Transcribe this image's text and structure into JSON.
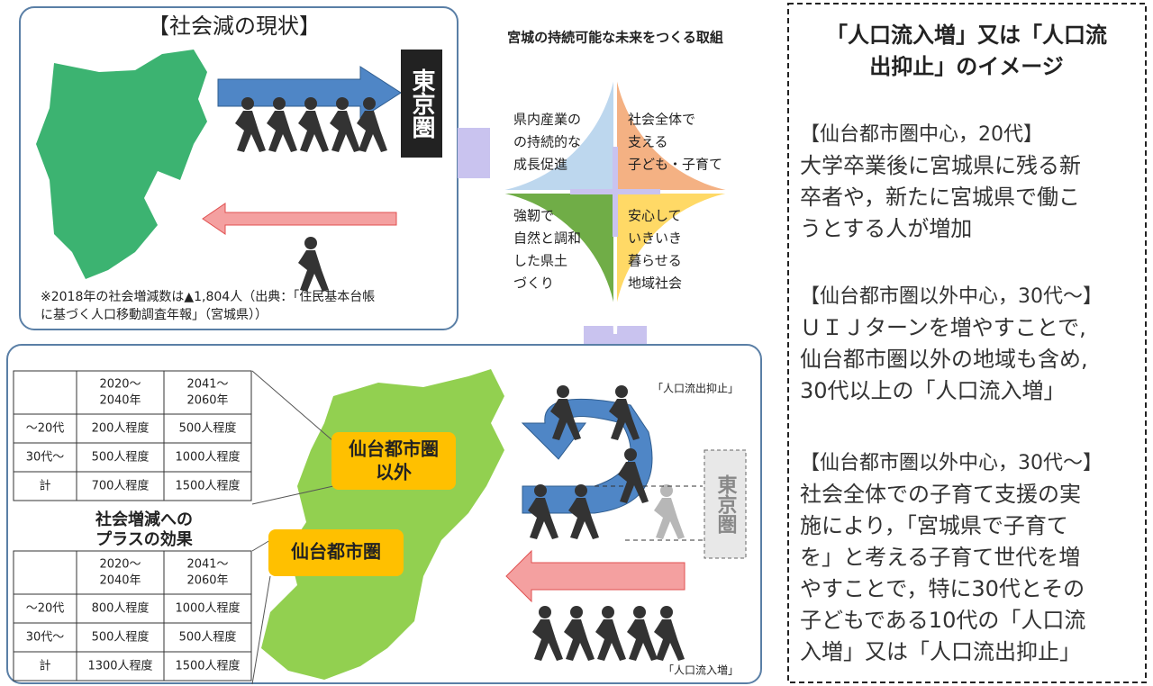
{
  "top_left": {
    "title": "【社会減の現状】",
    "destination": "東京圏",
    "note": [
      "※2018年の社会増減数は▲1,804人（出典：「住民基本台帳",
      "に基づく人口移動調査年報」（宮城県））"
    ]
  },
  "center": {
    "title": "宮城の持続可能な未来をつくる取組",
    "quadrants": [
      {
        "lines": [
          "県内産業の",
          "の持続的な",
          "成長促進"
        ]
      },
      {
        "lines": [
          "社会全体で",
          "支える",
          "子ども・子育て"
        ]
      },
      {
        "lines": [
          "強靭で",
          "自然と調和",
          "した県土",
          "づくり"
        ]
      },
      {
        "lines": [
          "安心して",
          "いきいき",
          "暮らせる",
          "地域社会"
        ]
      }
    ]
  },
  "bottom": {
    "tables": [
      {
        "header": [
          [
            "2020～",
            "2040年"
          ],
          [
            "2041～",
            "2060年"
          ]
        ],
        "rows": [
          [
            "～20代",
            "200人程度",
            "500人程度"
          ],
          [
            "30代～",
            "500人程度",
            "1000人程度"
          ],
          [
            "計",
            "700人程度",
            "1500人程度"
          ]
        ]
      },
      {
        "header": [
          [
            "2020～",
            "2040年"
          ],
          [
            "2041～",
            "2060年"
          ]
        ],
        "rows": [
          [
            "～20代",
            "800人程度",
            "1000人程度"
          ],
          [
            "30代～",
            "500人程度",
            "500人程度"
          ],
          [
            "計",
            "1300人程度",
            "1500人程度"
          ]
        ]
      }
    ],
    "regions": [
      [
        "仙台都市圏",
        "以外"
      ],
      [
        "仙台都市圏"
      ]
    ],
    "effect": [
      "社会増減への",
      "プラスの効果"
    ],
    "outflow_label": "「人口流出抑止」",
    "inflow_label": "「人口流入増」",
    "destination": "東京圏"
  },
  "right": {
    "title": [
      "「人口流入増」又は「人口流",
      "出抑止」のイメージ"
    ],
    "blocks": [
      {
        "heading": "【仙台都市圏中心，20代】",
        "body": [
          "大学卒業後に宮城県に残る新",
          "卒者や，新たに宮城県で働こ",
          "うとする人が増加"
        ]
      },
      {
        "heading": "【仙台都市圏以外中心，30代～】",
        "body": [
          "ＵＩＪターンを増やすことで,",
          "仙台都市圏以外の地域も含め,",
          "30代以上の「人口流入増」"
        ]
      },
      {
        "heading": "【仙台都市圏以外中心，30代～】",
        "body": [
          "社会全体での子育て支援の実",
          "施により，「宮城県で子育て",
          "を」と考える子育て世代を増",
          "やすことで，特に30代とその",
          "子どもである10代の「人口流",
          "入増」又は「人口流出抑止」"
        ]
      }
    ]
  }
}
